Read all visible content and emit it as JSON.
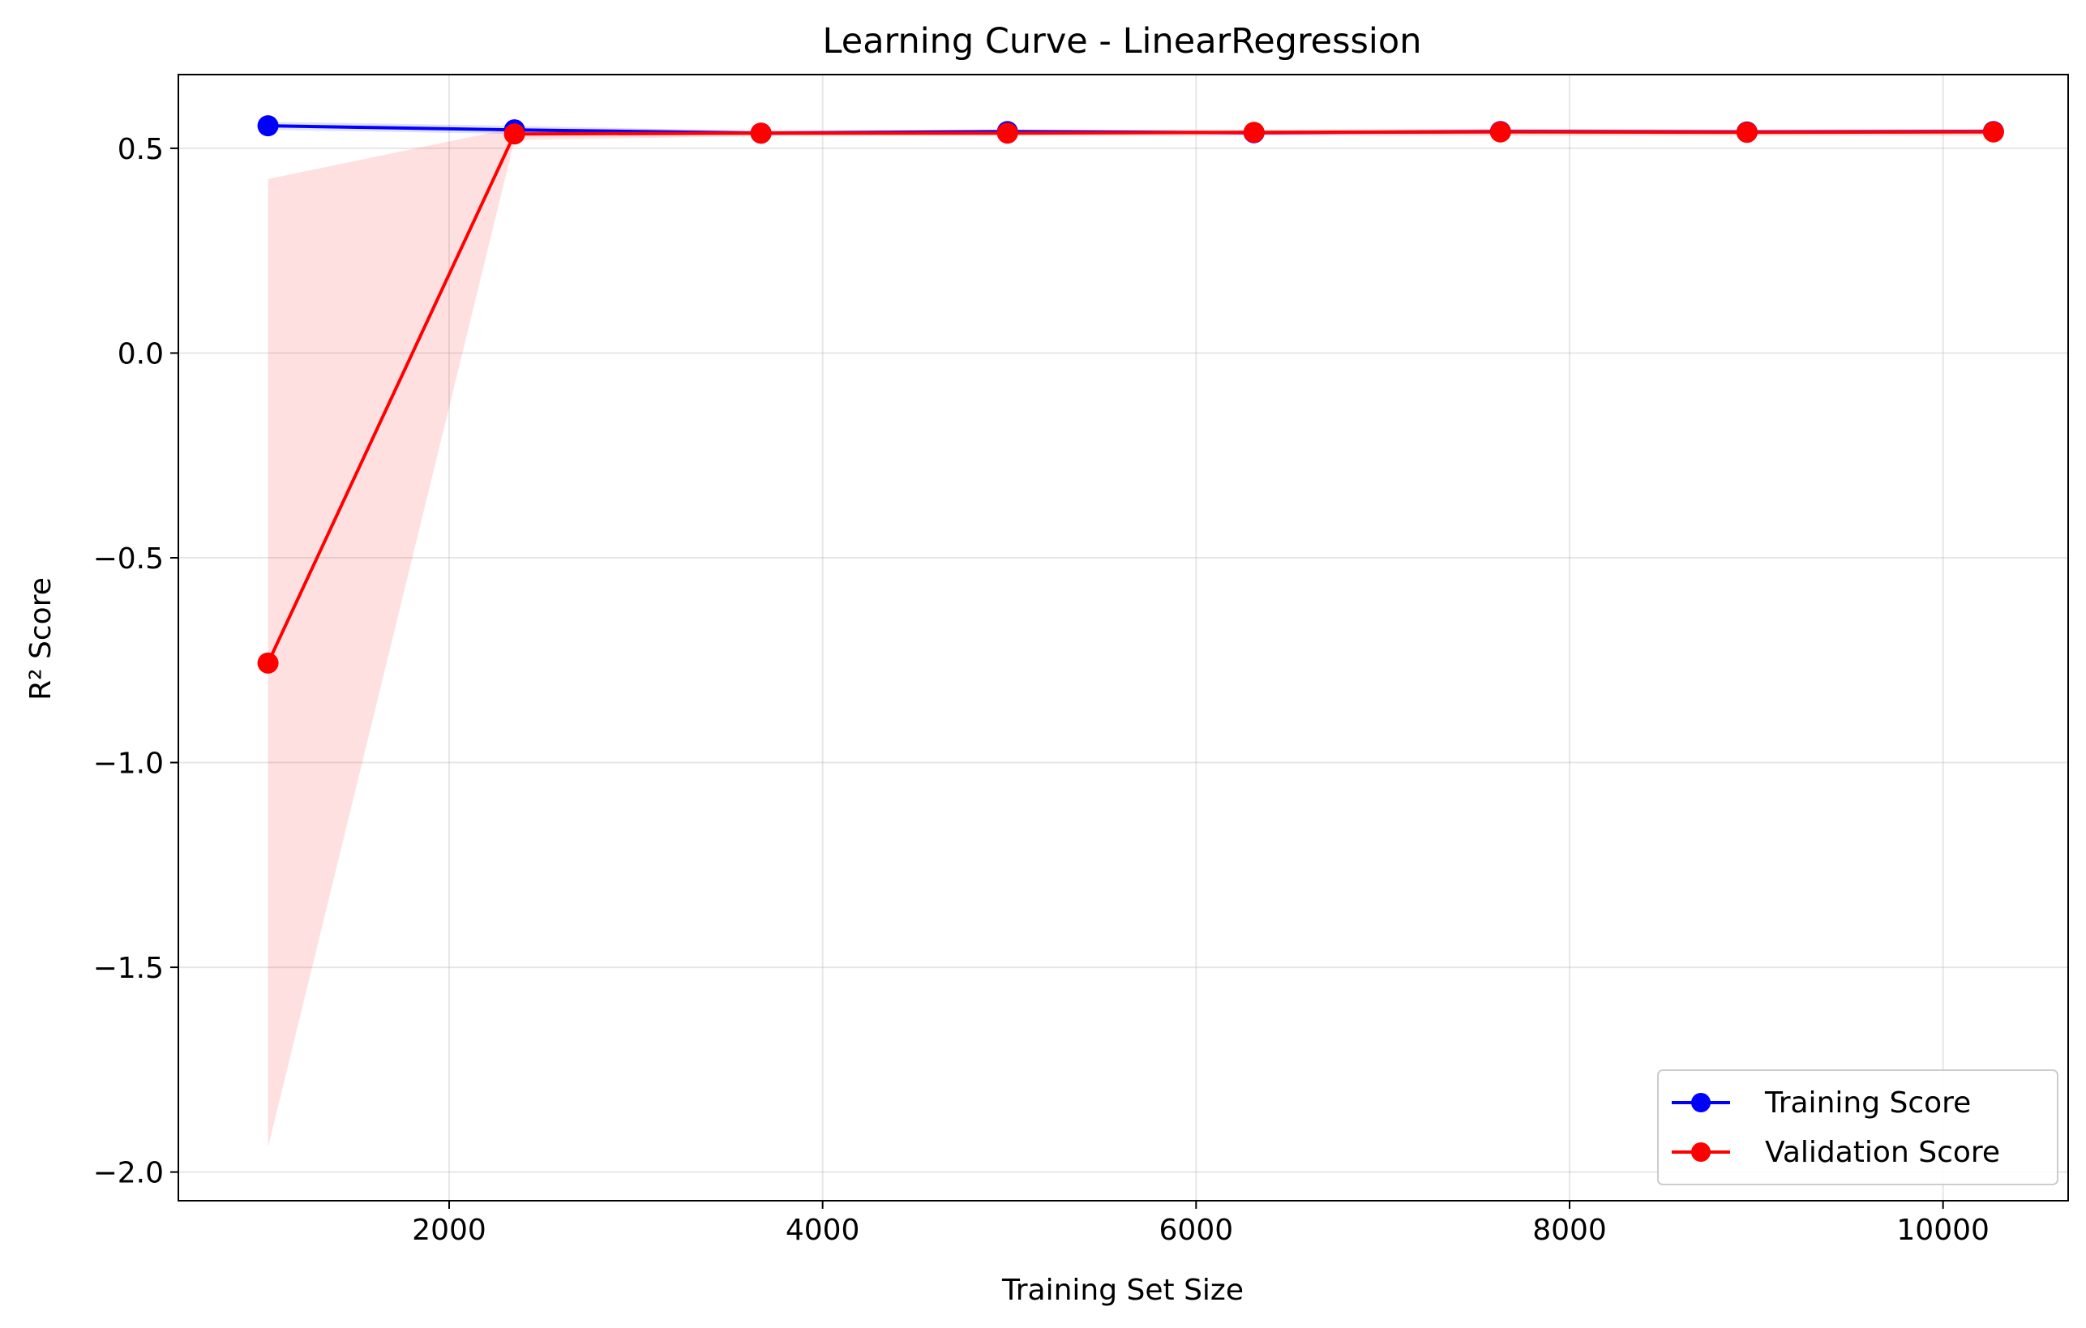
{
  "chart_data": {
    "type": "line",
    "title": "Learning Curve - LinearRegression",
    "xlabel": "Training Set Size",
    "ylabel": "R² Score",
    "xlim": [
      550,
      10670
    ],
    "ylim": [
      -2.07,
      0.68
    ],
    "xticks": [
      2000,
      4000,
      6000,
      8000,
      10000
    ],
    "xtick_labels": [
      "2000",
      "4000",
      "6000",
      "8000",
      "10000"
    ],
    "yticks": [
      0.5,
      0.0,
      -0.5,
      -1.0,
      -1.5,
      -2.0
    ],
    "ytick_labels": [
      "0.5",
      "0.0",
      "−0.5",
      "−1.0",
      "−1.5",
      "−2.0"
    ],
    "grid": true,
    "legend_position": "lower-right",
    "x": [
      1030,
      2350,
      3670,
      4990,
      6310,
      7630,
      8950,
      10270
    ],
    "series": [
      {
        "name": "Training Score",
        "color": "#0000ff",
        "values": [
          0.555,
          0.545,
          0.537,
          0.541,
          0.538,
          0.541,
          0.54,
          0.541
        ],
        "band_lower": [
          0.545,
          0.535,
          0.532,
          0.536,
          0.533,
          0.536,
          0.535,
          0.536
        ],
        "band_upper": [
          0.565,
          0.555,
          0.542,
          0.546,
          0.543,
          0.546,
          0.545,
          0.546
        ]
      },
      {
        "name": "Validation Score",
        "color": "#ff0000",
        "values": [
          -0.757,
          0.535,
          0.537,
          0.537,
          0.539,
          0.54,
          0.539,
          0.54
        ],
        "band_lower": [
          -1.94,
          0.52,
          0.53,
          0.53,
          0.53,
          0.53,
          0.53,
          0.53
        ],
        "band_upper": [
          0.425,
          0.55,
          0.545,
          0.545,
          0.545,
          0.548,
          0.546,
          0.547
        ]
      }
    ]
  }
}
